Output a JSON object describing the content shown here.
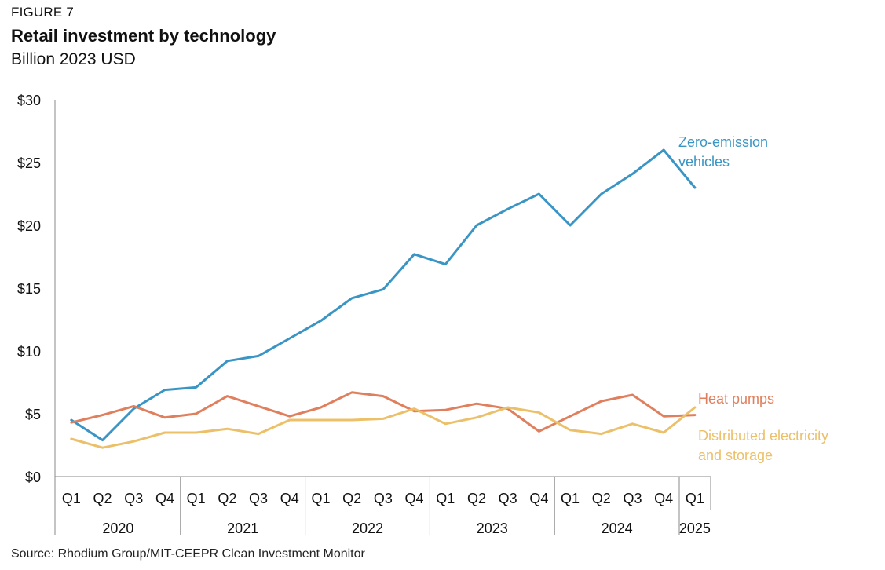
{
  "figure_label": "FIGURE 7",
  "title": "Retail investment by technology",
  "subtitle": "Billion 2023 USD",
  "source": "Source: Rhodium Group/MIT-CEEPR Clean Investment Monitor",
  "chart_data": {
    "type": "line",
    "title": "Retail investment by technology",
    "ylabel": "",
    "xlabel": "",
    "ylim": [
      0,
      30
    ],
    "yticks": [
      0,
      5,
      10,
      15,
      20,
      25,
      30
    ],
    "ytick_labels": [
      "$0",
      "$5",
      "$10",
      "$15",
      "$20",
      "$25",
      "$30"
    ],
    "grid": false,
    "categories": [
      "Q1",
      "Q2",
      "Q3",
      "Q4",
      "Q1",
      "Q2",
      "Q3",
      "Q4",
      "Q1",
      "Q2",
      "Q3",
      "Q4",
      "Q1",
      "Q2",
      "Q3",
      "Q4",
      "Q1",
      "Q2",
      "Q3",
      "Q4",
      "Q1"
    ],
    "year_groups": [
      {
        "label": "2020",
        "start": 0,
        "end": 3
      },
      {
        "label": "2021",
        "start": 4,
        "end": 7
      },
      {
        "label": "2022",
        "start": 8,
        "end": 11
      },
      {
        "label": "2023",
        "start": 12,
        "end": 15
      },
      {
        "label": "2024",
        "start": 16,
        "end": 19
      },
      {
        "label": "2025",
        "start": 20,
        "end": 20
      }
    ],
    "series": [
      {
        "name": "Zero-emission vehicles",
        "label_lines": [
          "Zero-emission",
          "vehicles"
        ],
        "color": "#3a95c5",
        "values": [
          4.5,
          2.9,
          5.4,
          6.9,
          7.1,
          9.2,
          9.6,
          11.0,
          12.4,
          14.2,
          14.9,
          17.7,
          16.9,
          20.0,
          21.3,
          22.5,
          20.0,
          22.5,
          24.1,
          26.0,
          23.0
        ]
      },
      {
        "name": "Heat pumps",
        "label_lines": [
          "Heat pumps"
        ],
        "color": "#e07f5d",
        "values": [
          4.3,
          4.9,
          5.6,
          4.7,
          5.0,
          6.4,
          5.6,
          4.8,
          5.5,
          6.7,
          6.4,
          5.2,
          5.3,
          5.8,
          5.4,
          3.6,
          4.8,
          6.0,
          6.5,
          4.8,
          4.9
        ]
      },
      {
        "name": "Distributed electricity and storage",
        "label_lines": [
          "Distributed electricity",
          "and storage"
        ],
        "color": "#ecc069",
        "values": [
          3.0,
          2.3,
          2.8,
          3.5,
          3.5,
          3.8,
          3.4,
          4.5,
          4.5,
          4.5,
          4.6,
          5.4,
          4.2,
          4.7,
          5.5,
          5.1,
          3.7,
          3.4,
          4.2,
          3.5,
          5.5
        ]
      }
    ]
  }
}
